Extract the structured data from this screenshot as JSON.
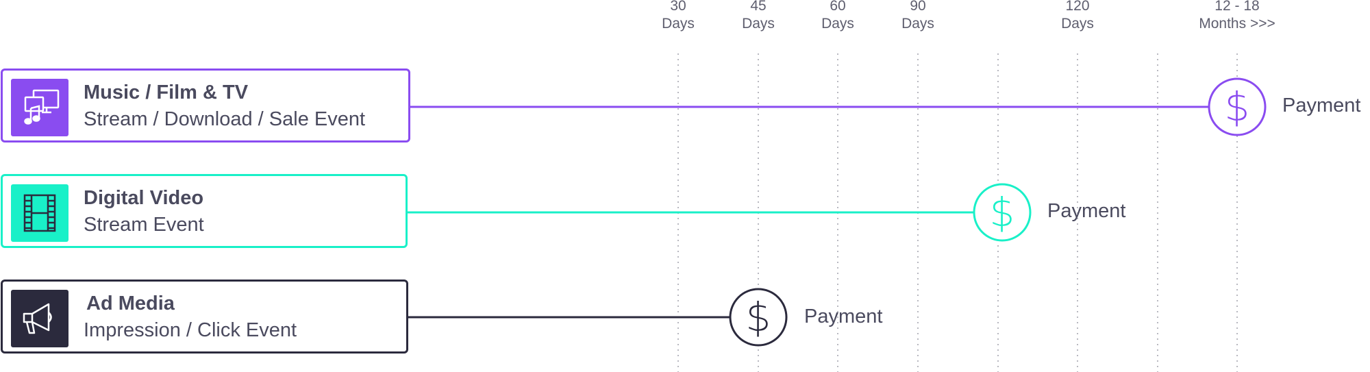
{
  "timeline": {
    "columns": [
      {
        "line1": "30",
        "line2": "Days"
      },
      {
        "line1": "45",
        "line2": "Days"
      },
      {
        "line1": "60",
        "line2": "Days"
      },
      {
        "line1": "90",
        "line2": "Days"
      },
      {
        "line1": "120",
        "line2": "Days"
      },
      {
        "line1": "12 - 18",
        "line2": "Months >>>"
      }
    ]
  },
  "rows": [
    {
      "title": "Music / Film & TV",
      "subtitle": "Stream / Download / Sale Event",
      "payment_label": "Payment",
      "color": "#8a4cf0",
      "icon": "music-video-icon"
    },
    {
      "title": "Digital Video",
      "subtitle": "Stream Event",
      "payment_label": "Payment",
      "color": "#19f0c8",
      "icon": "film-strip-icon"
    },
    {
      "title": "Ad Media",
      "subtitle": "Impression / Click Event",
      "payment_label": "Payment",
      "color": "#2b2a3d",
      "icon": "megaphone-icon"
    }
  ],
  "colors": {
    "guide_line": "#b8b8c0",
    "text": "#4a4a5e"
  }
}
